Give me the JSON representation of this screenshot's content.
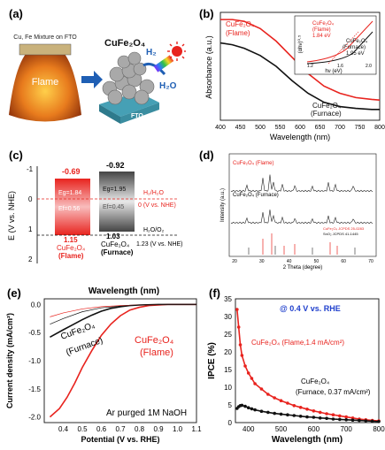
{
  "panels": {
    "a": {
      "label": "(a)",
      "flame_label": "Flame",
      "mixture_label": "Cu, Fe Mixture on FTO",
      "product_label": "CuFe₂O₄",
      "substrate_label": "FTO",
      "h2_label": "H₂",
      "h2o_label": "H₂O"
    },
    "b": {
      "label": "(b)"
    },
    "c": {
      "label": "(c)"
    },
    "d": {
      "label": "(d)"
    },
    "e": {
      "label": "(e)"
    },
    "f": {
      "label": "(f)"
    }
  },
  "colors": {
    "red": "#e8231e",
    "black": "#111111",
    "gray": "#888888"
  },
  "chart_data": [
    {
      "id": "b",
      "type": "line",
      "xlabel": "Wavelength (nm)",
      "ylabel": "Absorbance (a.u.)",
      "xlim": [
        400,
        800
      ],
      "xticks": [
        400,
        450,
        500,
        550,
        600,
        650,
        700,
        750,
        800
      ],
      "series": [
        {
          "name": "CuFe₂O₄ (Flame)",
          "color": "#e8231e",
          "x": [
            400,
            430,
            460,
            500,
            540,
            580,
            620,
            660,
            700,
            740,
            780,
            800
          ],
          "y": [
            2.8,
            2.8,
            2.75,
            2.55,
            2.2,
            1.75,
            1.3,
            0.95,
            0.75,
            0.63,
            0.58,
            0.56
          ]
        },
        {
          "name": "CuFe₂O₄ (Furnace)",
          "color": "#111111",
          "x": [
            400,
            430,
            460,
            500,
            540,
            580,
            620,
            660,
            700,
            740,
            780,
            800
          ],
          "y": [
            2.15,
            2.1,
            2.0,
            1.8,
            1.5,
            1.1,
            0.75,
            0.5,
            0.38,
            0.33,
            0.3,
            0.3
          ]
        }
      ],
      "labels": {
        "flame": "CuFe₂O₄",
        "flame_sub": "(Flame)",
        "furnace": "CuFe₂O₄",
        "furnace_sub": "(Furnace)"
      },
      "inset": {
        "ylabel": "(αhν)⁰·⁵",
        "xlabel": "hν (eV)",
        "xticks": [
          "1.2",
          "1.6",
          "2.0"
        ],
        "flame_label": "CuFe₂O₄",
        "flame_sub": "(Flame)",
        "flame_value": "1.84 eV",
        "furnace_label": "CuFe₂O₄",
        "furnace_sub": "(Furnace)",
        "furnace_value": "1.95 eV"
      }
    },
    {
      "id": "c",
      "type": "band_diagram",
      "ylabel": "E (V vs. NHE)",
      "ylim": [
        -1,
        2
      ],
      "yticks": [
        "-1",
        "0",
        "1",
        "2"
      ],
      "flame": {
        "cb": -0.69,
        "vb": 1.15,
        "eg": "Eg=1.84",
        "ef": "Ef=0.56",
        "name": "CuFe₂O₄",
        "sub": "(Flame)",
        "cb_label": "-0.69",
        "vb_label": "1.15"
      },
      "furnace": {
        "cb": -0.92,
        "vb": 1.03,
        "eg": "Eg=1.95",
        "ef": "Ef=0.45",
        "name": "CuFe₂O₄",
        "sub": "(Furnace)",
        "cb_label": "-0.92",
        "vb_label": "1.03"
      },
      "refs": {
        "h2": "H₂/H₂O",
        "zero": "0 (V vs. NHE)",
        "o2": "H₂O/O₂",
        "o2_val": "1.23 (V vs. NHE)"
      }
    },
    {
      "id": "d",
      "type": "line",
      "xlabel": "2 Theta (degree)",
      "ylabel": "Intensity (a.u.)",
      "xticks": [
        "20",
        "30",
        "40",
        "50",
        "60",
        "70"
      ],
      "series_labels": [
        "CuFe₂O₄ (Flame)",
        "CuFe₂O₄ (Furnace)"
      ],
      "legend": [
        "CuFe₂O₄ JCPDS 25-0283",
        "SnO₂ JCPDS 41-1445"
      ]
    },
    {
      "id": "e",
      "type": "line",
      "title": "Wavelength (nm)",
      "xlabel": "Potential (V vs. RHE)",
      "ylabel": "Current density (mA/cm²)",
      "xlim": [
        0.3,
        1.1
      ],
      "ylim": [
        -2.1,
        0.1
      ],
      "xticks": [
        "0.4",
        "0.5",
        "0.6",
        "0.7",
        "0.8",
        "0.9",
        "1.0",
        "1.1"
      ],
      "yticks": [
        "0.0",
        "-0.5",
        "-1.0",
        "-1.5",
        "-2.0"
      ],
      "series": [
        {
          "name": "CuFe₂O₄ (Flame)",
          "color": "#e8231e",
          "x": [
            0.33,
            0.38,
            0.42,
            0.46,
            0.5,
            0.55,
            0.6,
            0.65,
            0.7,
            0.75,
            0.8,
            0.85,
            0.9,
            0.95,
            1.0,
            1.05,
            1.1
          ],
          "y": [
            -2.0,
            -1.85,
            -1.65,
            -1.4,
            -1.12,
            -0.82,
            -0.55,
            -0.35,
            -0.2,
            -0.1,
            -0.05,
            -0.02,
            -0.01,
            0.0,
            0.0,
            0.0,
            0.0
          ]
        },
        {
          "name": "CuFe₂O₄ (Furnace)",
          "color": "#111111",
          "x": [
            0.33,
            0.4,
            0.45,
            0.5,
            0.55,
            0.6,
            0.65,
            0.7,
            0.75,
            0.8,
            0.9,
            1.0,
            1.1
          ],
          "y": [
            -0.58,
            -0.45,
            -0.36,
            -0.27,
            -0.19,
            -0.12,
            -0.07,
            -0.04,
            -0.02,
            -0.01,
            0.0,
            0.0,
            0.0
          ]
        },
        {
          "name": "Flame dark",
          "color": "#e8231e",
          "thin": true,
          "x": [
            0.33,
            0.4,
            0.5,
            0.6,
            0.7,
            0.8,
            0.9,
            1.0,
            1.1
          ],
          "y": [
            -0.22,
            -0.15,
            -0.08,
            -0.04,
            -0.02,
            -0.01,
            0.0,
            0.0,
            0.0
          ]
        },
        {
          "name": "Furnace dark",
          "color": "#111111",
          "thin": true,
          "x": [
            0.33,
            0.4,
            0.5,
            0.6,
            0.7,
            0.8,
            0.9,
            1.0,
            1.1
          ],
          "y": [
            -0.35,
            -0.25,
            -0.13,
            -0.06,
            -0.03,
            -0.01,
            0.0,
            0.0,
            0.0
          ]
        }
      ],
      "labels": {
        "flame": "CuFe₂O₄",
        "flame_sub": "(Flame)",
        "furnace": "CuFe₂O₄",
        "furnace_sub": "(Furnace)",
        "electrolyte": "Ar purged 1M NaOH"
      }
    },
    {
      "id": "f",
      "type": "line",
      "xlabel": "Wavelength (nm)",
      "ylabel": "IPCE (%)",
      "xlim": [
        360,
        800
      ],
      "ylim": [
        0,
        35
      ],
      "xticks": [
        "400",
        "500",
        "600",
        "700",
        "800"
      ],
      "yticks": [
        "0",
        "5",
        "10",
        "15",
        "20",
        "25",
        "30",
        "35"
      ],
      "annotation": "@ 0.4 V vs. RHE",
      "series": [
        {
          "name": "CuFe₂O₄ (Flame,1.4 mA/cm²)",
          "color": "#e8231e",
          "x": [
            365,
            370,
            375,
            380,
            390,
            400,
            410,
            420,
            440,
            460,
            480,
            500,
            520,
            540,
            560,
            580,
            600,
            620,
            640,
            660,
            680,
            700,
            720,
            740,
            760,
            780,
            800
          ],
          "y": [
            32,
            27,
            22,
            19,
            16,
            14,
            12.5,
            11,
            9.5,
            8,
            7,
            6.2,
            5.5,
            4.8,
            4.3,
            3.8,
            3.3,
            2.9,
            2.5,
            2.2,
            1.9,
            1.6,
            1.3,
            1.0,
            0.8,
            0.6,
            0.5
          ]
        },
        {
          "name": "CuFe₂O₄ (Furnace, 0.37 mA/cm²)",
          "color": "#111111",
          "x": [
            365,
            370,
            375,
            380,
            390,
            400,
            410,
            420,
            440,
            460,
            480,
            500,
            520,
            540,
            560,
            580,
            600,
            620,
            640,
            660,
            680,
            700,
            720,
            740,
            760,
            780,
            800
          ],
          "y": [
            4.0,
            4.5,
            4.8,
            4.9,
            4.6,
            4.2,
            3.9,
            3.6,
            3.2,
            2.9,
            2.6,
            2.4,
            2.2,
            2.0,
            1.8,
            1.6,
            1.5,
            1.3,
            1.2,
            1.0,
            0.9,
            0.8,
            0.7,
            0.6,
            0.5,
            0.4,
            0.3
          ]
        }
      ],
      "labels": {
        "flame": "CuFe₂O₄ (Flame,1.4 mA/cm²)",
        "furnace": "CuFe₂O₄",
        "furnace_sub": "(Furnace, 0.37 mA/cm²)"
      }
    }
  ]
}
